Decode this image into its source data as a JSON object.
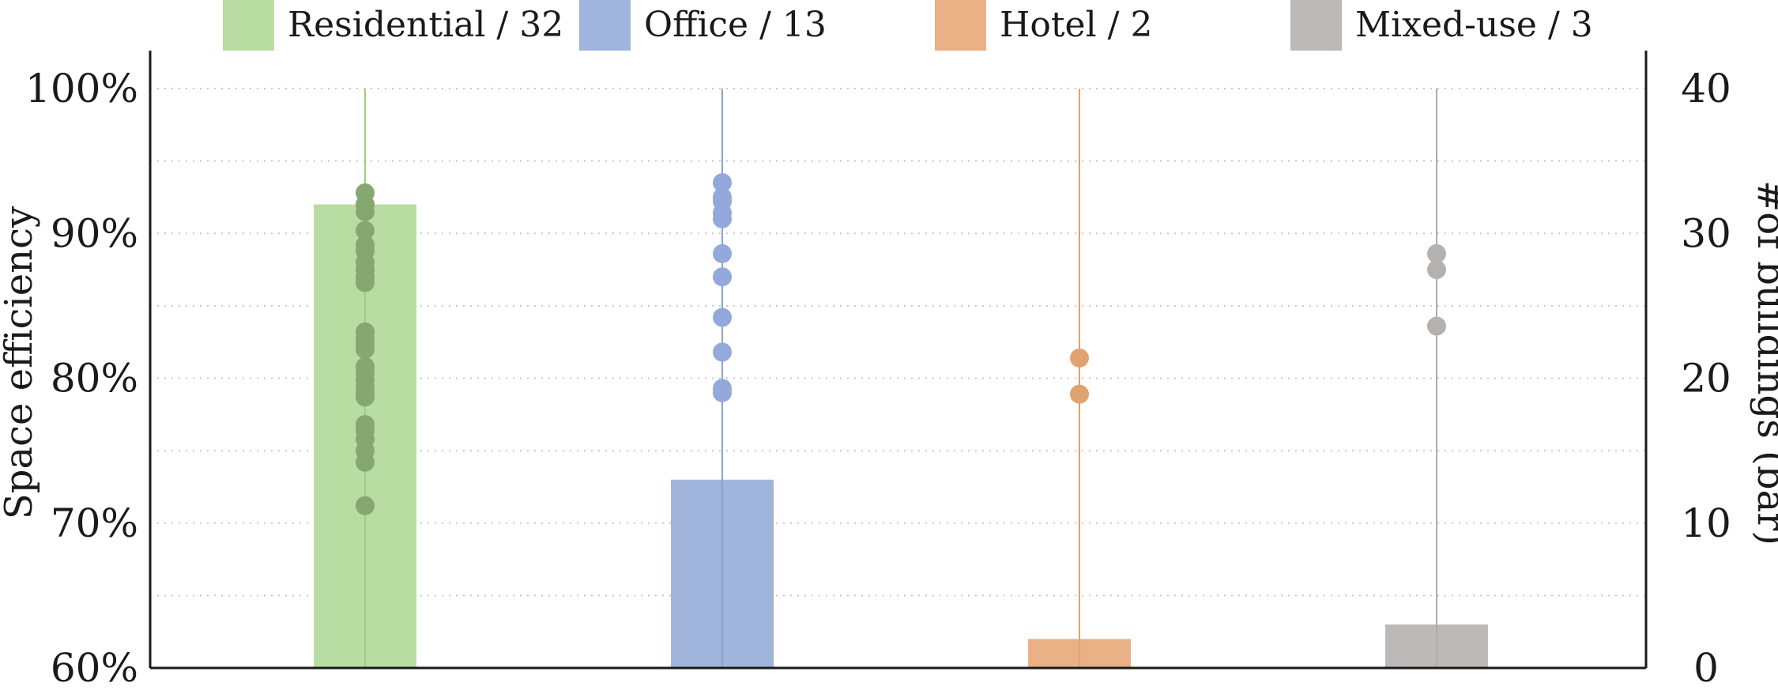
{
  "chart_data": {
    "type": "bar",
    "categories": [
      "Residential",
      "Office",
      "Hotel",
      "Mixed-use"
    ],
    "legend": {
      "placement": "top",
      "entries": [
        {
          "label": "Residential / 32",
          "color": "#b9dca3"
        },
        {
          "label": "Office / 13",
          "color": "#a0b4dc"
        },
        {
          "label": "Hotel / 2",
          "color": "#e9b185"
        },
        {
          "label": "Mixed-use / 3",
          "color": "#bdb9b8"
        }
      ]
    },
    "bar_counts": [
      32,
      13,
      2,
      3
    ],
    "bar_colors": [
      "#b9dca3",
      "#a0b4dc",
      "#e9b185",
      "#bdb9b8"
    ],
    "line_colors": [
      "#9fcc86",
      "#8aa3d1",
      "#e4a06c",
      "#b0abaa"
    ],
    "point_colors": [
      "#86a870",
      "#93a9db",
      "#e0a36f",
      "#b5b1b0"
    ],
    "efficiency_points": [
      [
        92.8,
        92.0,
        91.5,
        90.2,
        89.2,
        88.8,
        88.0,
        87.5,
        87.0,
        86.6,
        83.2,
        82.8,
        82.4,
        82.0,
        80.8,
        80.4,
        79.9,
        79.4,
        79.0,
        78.7,
        76.8,
        76.4,
        75.8,
        75.0,
        74.2,
        71.2
      ],
      [
        93.5,
        92.5,
        92.2,
        91.4,
        91.0,
        88.6,
        87.0,
        84.2,
        81.8,
        79.3,
        79.0
      ],
      [
        81.4,
        78.9
      ],
      [
        88.6,
        87.5,
        83.6
      ]
    ],
    "y_left": {
      "label": "Space efficiency",
      "min": 60,
      "max": 100,
      "ticks": [
        "60%",
        "70%",
        "80%",
        "90%",
        "100%"
      ],
      "tick_values": [
        60,
        70,
        80,
        90,
        100
      ]
    },
    "y_right": {
      "label": "#of buildings (bar)",
      "min": 0,
      "max": 40,
      "ticks": [
        "0",
        "10",
        "20",
        "30",
        "40"
      ],
      "tick_values": [
        0,
        10,
        20,
        30,
        40
      ]
    },
    "grid": true,
    "grid_values": [
      60,
      65,
      70,
      75,
      80,
      85,
      90,
      95,
      100
    ]
  }
}
